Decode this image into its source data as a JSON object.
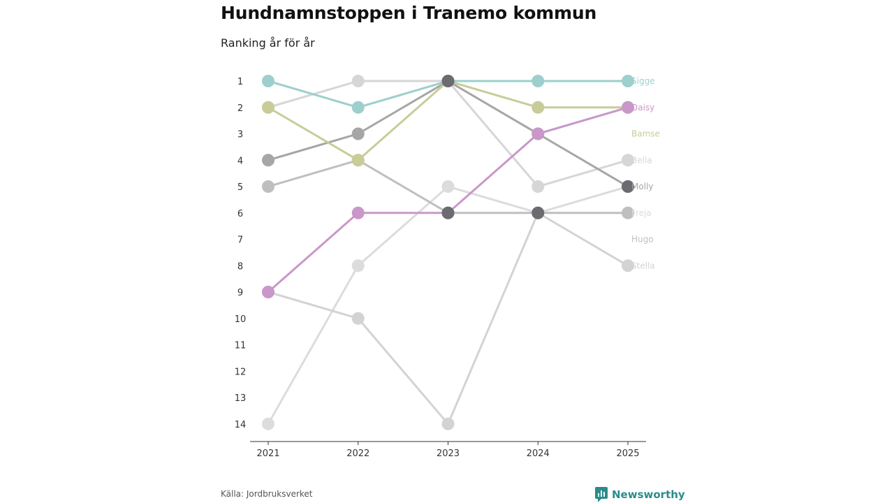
{
  "header": {
    "title": "Hundnamnstoppen i Tranemo kommun",
    "subtitle": "Ranking år för år"
  },
  "footer": {
    "source": "Källa: Jordbruksverket",
    "brand": "Newsworthy"
  },
  "colors": {
    "Sigge": "#9dcfcd",
    "Daisy": "#c997c9",
    "Bamse": "#c8cc98",
    "Bella": "#d6d6d6",
    "Molly": "#a6a6a6",
    "Freja": "#dcdcdc",
    "Hugo": "#bfbfbf",
    "Stella": "#d3d3d3",
    "highlight": "#6b6b70",
    "brand": "#2a8c8c"
  },
  "chart_data": {
    "type": "bump",
    "title": "Hundnamnstoppen i Tranemo kommun",
    "subtitle": "Ranking år för år",
    "x": [
      "2021",
      "2022",
      "2023",
      "2024",
      "2025"
    ],
    "y_ticks": [
      "1",
      "2",
      "3",
      "4",
      "5",
      "6",
      "7",
      "8",
      "9",
      "10",
      "11",
      "12",
      "13",
      "14"
    ],
    "ylim": [
      1,
      14
    ],
    "y_inverted": true,
    "series": [
      {
        "name": "Sigge",
        "values": [
          1,
          2,
          1,
          1,
          1
        ]
      },
      {
        "name": "Daisy",
        "values": [
          9,
          6,
          6,
          3,
          2
        ]
      },
      {
        "name": "Bamse",
        "values": [
          2,
          4,
          1,
          2,
          2
        ]
      },
      {
        "name": "Bella",
        "values": [
          2,
          1,
          1,
          5,
          4
        ]
      },
      {
        "name": "Molly",
        "values": [
          4,
          3,
          1,
          3,
          5
        ]
      },
      {
        "name": "Freja",
        "values": [
          14,
          8,
          5,
          6,
          5
        ]
      },
      {
        "name": "Hugo",
        "values": [
          5,
          4,
          6,
          6,
          6
        ]
      },
      {
        "name": "Stella",
        "values": [
          9,
          10,
          14,
          6,
          8
        ]
      }
    ]
  }
}
